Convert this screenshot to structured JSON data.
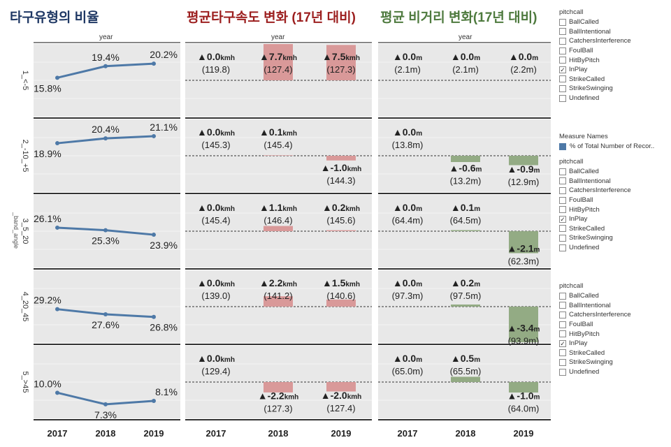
{
  "titles": {
    "share": "타구유형의 비율",
    "speed": "평균타구속도 변화 (17년 대비)",
    "distance": "평균 비거리 변화(17년 대비)"
  },
  "year_header": "year",
  "y_axis_label": "_band_angle",
  "chart_data": {
    "type": "line",
    "years": [
      "2017",
      "2018",
      "2019"
    ],
    "bands": [
      "1_<-5",
      "2_-10_+5",
      "3_5_20",
      "4_20_45",
      "5_>45"
    ],
    "share_pct": [
      [
        15.8,
        19.4,
        20.2
      ],
      [
        18.9,
        20.4,
        21.1
      ],
      [
        26.1,
        25.3,
        23.9
      ],
      [
        29.2,
        27.6,
        26.8
      ],
      [
        10.0,
        7.3,
        8.1
      ]
    ],
    "share_labels": [
      [
        "15.8%",
        "19.4%",
        "20.2%"
      ],
      [
        "18.9%",
        "20.4%",
        "21.1%"
      ],
      [
        "26.1%",
        "25.3%",
        "23.9%"
      ],
      [
        "29.2%",
        "27.6%",
        "26.8%"
      ],
      [
        "10.0%",
        "7.3%",
        "8.1%"
      ]
    ],
    "speed_change": [
      [
        0.0,
        7.7,
        7.5
      ],
      [
        0.0,
        0.1,
        -1.0
      ],
      [
        0.0,
        1.1,
        0.2
      ],
      [
        0.0,
        2.2,
        1.5
      ],
      [
        0.0,
        -2.2,
        -2.0
      ]
    ],
    "speed_change_labels": [
      [
        "▲0.0",
        "▲7.7",
        "▲7.5"
      ],
      [
        "▲0.0",
        "▲0.1",
        "▲-1.0"
      ],
      [
        "▲0.0",
        "▲1.1",
        "▲0.2"
      ],
      [
        "▲0.0",
        "▲2.2",
        "▲1.5"
      ],
      [
        "▲0.0",
        "▲-2.2",
        "▲-2.0"
      ]
    ],
    "speed_unit": "kmh",
    "speed_avg_labels": [
      [
        "(119.8)",
        "(127.4)",
        "(127.3)"
      ],
      [
        "(145.3)",
        "(145.4)",
        "(144.3)"
      ],
      [
        "(145.4)",
        "(146.4)",
        "(145.6)"
      ],
      [
        "(139.0)",
        "(141.2)",
        "(140.6)"
      ],
      [
        "(129.4)",
        "(127.3)",
        "(127.4)"
      ]
    ],
    "dist_change": [
      [
        0.0,
        0.0,
        0.0
      ],
      [
        0.0,
        -0.6,
        -0.9
      ],
      [
        0.0,
        0.1,
        -2.1
      ],
      [
        0.0,
        0.2,
        -3.4
      ],
      [
        0.0,
        0.5,
        -1.0
      ]
    ],
    "dist_change_labels": [
      [
        "▲0.0",
        "▲0.0",
        "▲0.0"
      ],
      [
        "▲0.0",
        "▲-0.6",
        "▲-0.9"
      ],
      [
        "▲0.0",
        "▲0.1",
        "▲-2.1"
      ],
      [
        "▲0.0",
        "▲0.2",
        "▲-3.4"
      ],
      [
        "▲0.0",
        "▲0.5",
        "▲-1.0"
      ]
    ],
    "dist_unit": "m",
    "dist_avg_labels": [
      [
        "(2.1",
        "(2.1",
        "(2.2"
      ],
      [
        "(13.8",
        "(13.2",
        "(12.9"
      ],
      [
        "(64.4",
        "(64.5",
        "(62.3"
      ],
      [
        "(97.3",
        "(97.5",
        "(93.9"
      ],
      [
        "(65.0",
        "(65.5",
        "(64.0"
      ]
    ],
    "dist_avg_suffix": "m)",
    "speed_scale_max": 8,
    "dist_scale_max": 3.6
  },
  "colors": {
    "line": "#4e79a7",
    "speed_bar": "#d99999",
    "dist_bar": "#93ab84",
    "panel_bg": "#e8e8e8"
  },
  "legends": [
    {
      "title": "pitchcall",
      "items": [
        {
          "label": "BallCalled",
          "checked": false
        },
        {
          "label": "BallIntentional",
          "checked": false
        },
        {
          "label": "CatchersInterference",
          "checked": false
        },
        {
          "label": "FoulBall",
          "checked": false
        },
        {
          "label": "HitByPitch",
          "checked": false
        },
        {
          "label": "InPlay",
          "checked": true
        },
        {
          "label": "StrikeCalled",
          "checked": false
        },
        {
          "label": "StrikeSwinging",
          "checked": false
        },
        {
          "label": "Undefined",
          "checked": false
        }
      ]
    },
    {
      "title": "pitchcall",
      "items": [
        {
          "label": "BallCalled",
          "checked": false
        },
        {
          "label": "BallIntentional",
          "checked": false
        },
        {
          "label": "CatchersInterference",
          "checked": false
        },
        {
          "label": "FoulBall",
          "checked": false
        },
        {
          "label": "HitByPitch",
          "checked": false
        },
        {
          "label": "InPlay",
          "checked": true
        },
        {
          "label": "StrikeCalled",
          "checked": false
        },
        {
          "label": "StrikeSwinging",
          "checked": false
        },
        {
          "label": "Undefined",
          "checked": false
        }
      ]
    },
    {
      "title": "pitchcall",
      "items": [
        {
          "label": "BallCalled",
          "checked": false
        },
        {
          "label": "BallIntentional",
          "checked": false
        },
        {
          "label": "CatchersInterference",
          "checked": false
        },
        {
          "label": "FoulBall",
          "checked": false
        },
        {
          "label": "HitByPitch",
          "checked": false
        },
        {
          "label": "InPlay",
          "checked": true
        },
        {
          "label": "StrikeCalled",
          "checked": false
        },
        {
          "label": "StrikeSwinging",
          "checked": false
        },
        {
          "label": "Undefined",
          "checked": false
        }
      ]
    }
  ],
  "measure_names": {
    "title": "Measure Names",
    "item": "% of Total Number of Recor.."
  }
}
